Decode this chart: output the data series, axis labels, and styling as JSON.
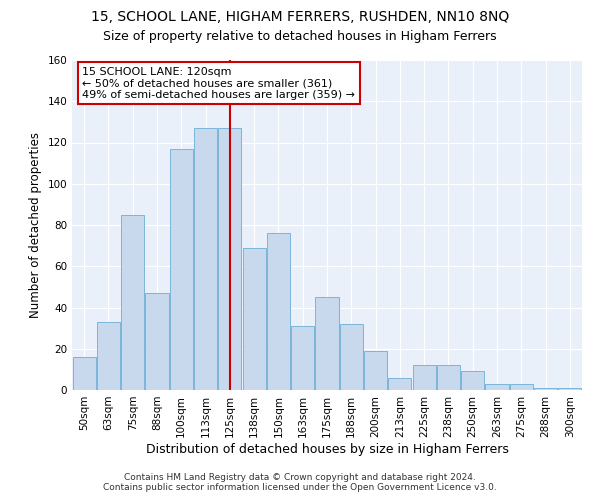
{
  "title": "15, SCHOOL LANE, HIGHAM FERRERS, RUSHDEN, NN10 8NQ",
  "subtitle": "Size of property relative to detached houses in Higham Ferrers",
  "xlabel": "Distribution of detached houses by size in Higham Ferrers",
  "ylabel": "Number of detached properties",
  "categories": [
    "50sqm",
    "63sqm",
    "75sqm",
    "88sqm",
    "100sqm",
    "113sqm",
    "125sqm",
    "138sqm",
    "150sqm",
    "163sqm",
    "175sqm",
    "188sqm",
    "200sqm",
    "213sqm",
    "225sqm",
    "238sqm",
    "250sqm",
    "263sqm",
    "275sqm",
    "288sqm",
    "300sqm"
  ],
  "values": [
    16,
    33,
    85,
    47,
    117,
    127,
    127,
    69,
    76,
    31,
    45,
    32,
    19,
    6,
    12,
    12,
    9,
    3,
    3,
    1,
    1
  ],
  "bar_color": "#c8d9ee",
  "bar_edge_color": "#6baed6",
  "vline_x": 6,
  "vline_color": "#cc0000",
  "annotation_line1": "15 SCHOOL LANE: 120sqm",
  "annotation_line2": "← 50% of detached houses are smaller (361)",
  "annotation_line3": "49% of semi-detached houses are larger (359) →",
  "annotation_box_color": "#ffffff",
  "annotation_box_edge": "#cc0000",
  "ylim": [
    0,
    160
  ],
  "yticks": [
    0,
    20,
    40,
    60,
    80,
    100,
    120,
    140,
    160
  ],
  "footer_line1": "Contains HM Land Registry data © Crown copyright and database right 2024.",
  "footer_line2": "Contains public sector information licensed under the Open Government Licence v3.0.",
  "title_fontsize": 10,
  "subtitle_fontsize": 9,
  "xlabel_fontsize": 9,
  "ylabel_fontsize": 8.5,
  "tick_fontsize": 7.5,
  "footer_fontsize": 6.5,
  "bg_color": "#ffffff",
  "plot_bg_color": "#eaf0f9",
  "grid_color": "#ffffff"
}
